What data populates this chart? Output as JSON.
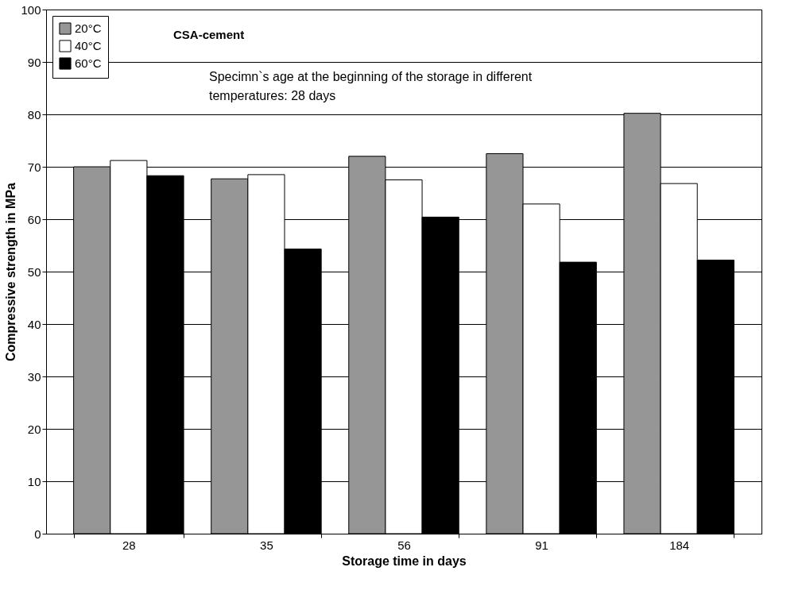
{
  "chart_data": {
    "type": "bar",
    "xlabel": "Storage time in days",
    "ylabel": "Compressive strength in MPa",
    "categories": [
      "28",
      "35",
      "56",
      "91",
      "184"
    ],
    "series": [
      {
        "name": "20°C",
        "color": "#969696",
        "values": [
          70.0,
          67.7,
          72.0,
          72.5,
          80.2
        ]
      },
      {
        "name": "40°C",
        "color": "#ffffff",
        "values": [
          71.2,
          68.5,
          67.5,
          62.9,
          66.8
        ]
      },
      {
        "name": "60°C",
        "color": "#000000",
        "values": [
          68.3,
          54.3,
          60.4,
          51.8,
          52.2
        ]
      }
    ],
    "ylim": [
      0,
      100
    ],
    "yticks": [
      0,
      10,
      20,
      30,
      40,
      50,
      60,
      70,
      80,
      90,
      100
    ],
    "grid": "y",
    "legend": "top left",
    "annotations": [
      "CSA-cement",
      "Specimn`s age at the beginning of the storage in different\ntemperatures: 28 days"
    ]
  }
}
